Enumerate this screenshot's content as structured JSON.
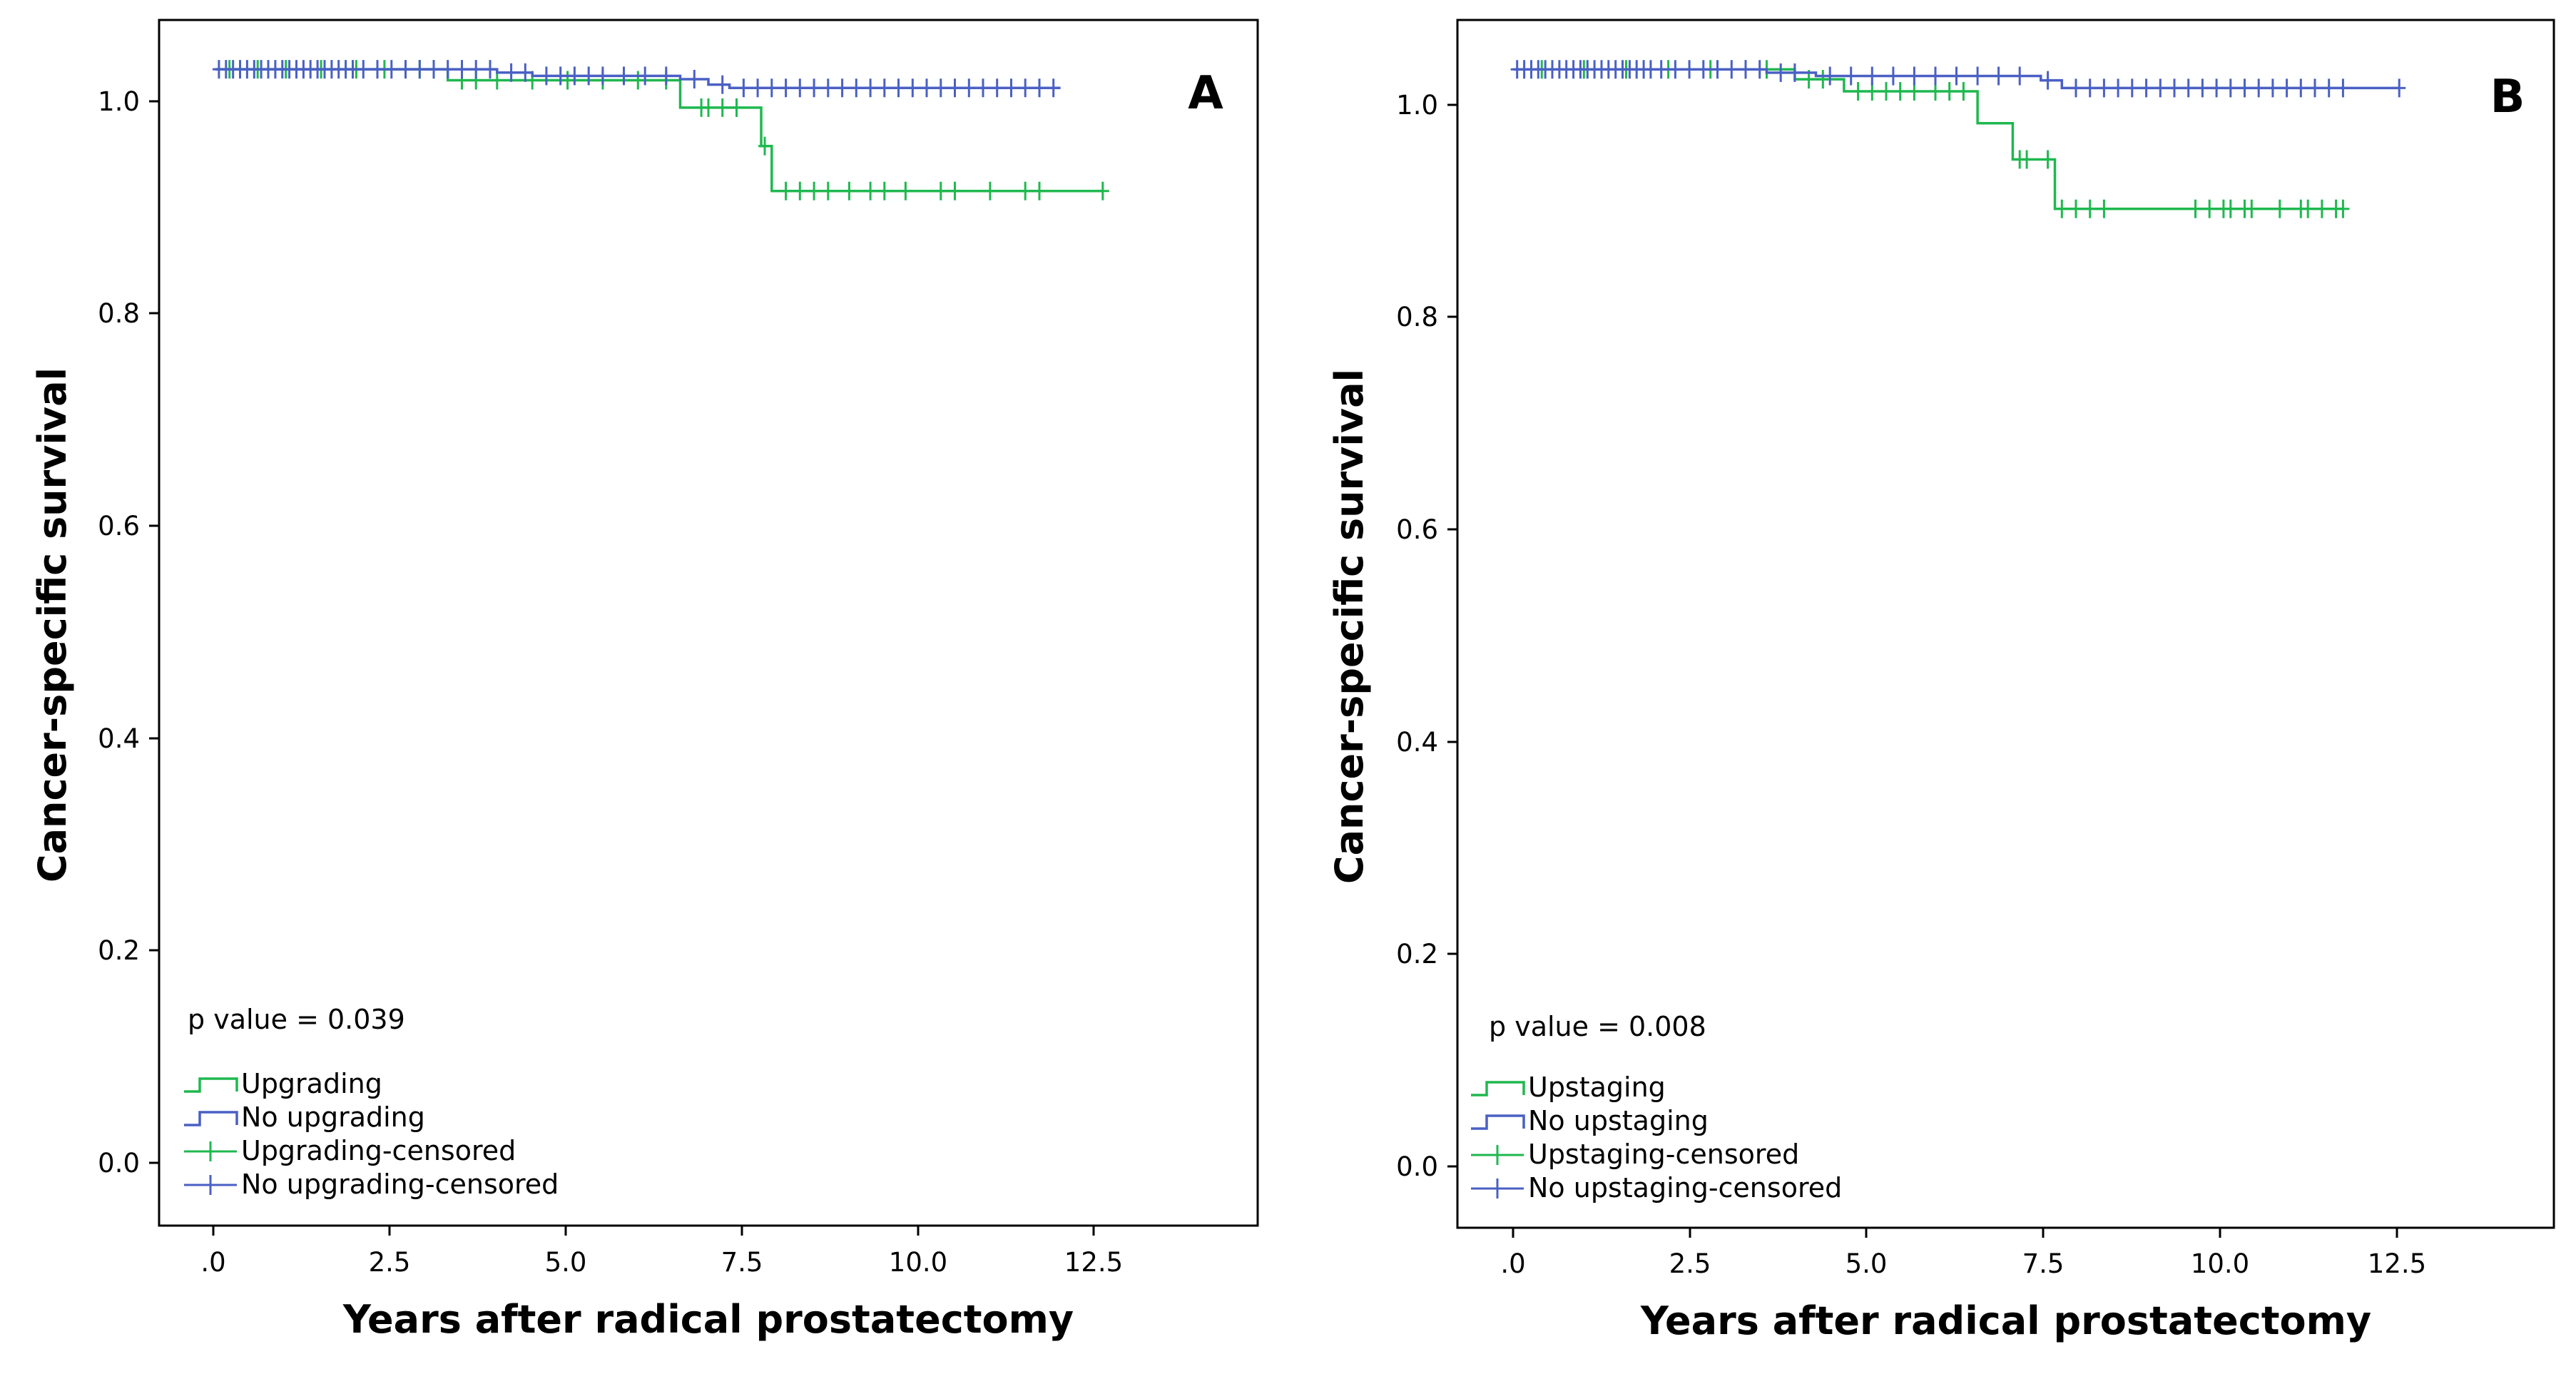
{
  "chart_data": [
    {
      "type": "line",
      "subtype": "kaplan-meier",
      "panel_label": "A",
      "xlabel": "Years after radical prostatectomy",
      "ylabel": "Cancer-specific survival",
      "xlim": [
        -0.8,
        14.8
      ],
      "ylim": [
        -0.055,
        1.045
      ],
      "xticks": [
        0,
        2.5,
        5,
        7.5,
        10,
        12.5
      ],
      "xtick_labels": [
        ".0",
        "2.5",
        "5.0",
        "7.5",
        "10.0",
        "12.5"
      ],
      "yticks": [
        0,
        0.2,
        0.4,
        0.6,
        0.8,
        1.0
      ],
      "ytick_labels": [
        "0.0",
        "0.2",
        "0.4",
        "0.6",
        "0.8",
        "1.0"
      ],
      "annotation": "p value = 0.039",
      "legend": [
        {
          "label": "Upgrading",
          "kind": "line",
          "series": 0
        },
        {
          "label": "No upgrading",
          "kind": "line",
          "series": 1
        },
        {
          "label": "Upgrading-censored",
          "kind": "censor",
          "series": 0
        },
        {
          "label": "No upgrading-censored",
          "kind": "censor",
          "series": 1
        }
      ],
      "series": [
        {
          "name": "Upgrading",
          "color": "#1fb84f",
          "steps": [
            [
              0,
              1.0
            ],
            [
              3.3,
              0.99
            ],
            [
              6.6,
              0.965
            ],
            [
              7.75,
              0.93
            ],
            [
              7.9,
              0.889
            ],
            [
              12.6,
              0.889
            ]
          ],
          "censored": [
            [
              0.2,
              1.0
            ],
            [
              0.6,
              1.0
            ],
            [
              1.0,
              1.0
            ],
            [
              1.5,
              1.0
            ],
            [
              2.0,
              1.0
            ],
            [
              2.4,
              1.0
            ],
            [
              2.9,
              1.0
            ],
            [
              3.1,
              1.0
            ],
            [
              3.5,
              0.99
            ],
            [
              3.7,
              0.99
            ],
            [
              4.0,
              0.99
            ],
            [
              4.5,
              0.99
            ],
            [
              5.0,
              0.99
            ],
            [
              5.5,
              0.99
            ],
            [
              6.0,
              0.99
            ],
            [
              6.4,
              0.99
            ],
            [
              6.9,
              0.965
            ],
            [
              7.0,
              0.965
            ],
            [
              7.2,
              0.965
            ],
            [
              7.4,
              0.965
            ],
            [
              7.8,
              0.93
            ],
            [
              8.1,
              0.889
            ],
            [
              8.3,
              0.889
            ],
            [
              8.5,
              0.889
            ],
            [
              8.7,
              0.889
            ],
            [
              9.0,
              0.889
            ],
            [
              9.3,
              0.889
            ],
            [
              9.5,
              0.889
            ],
            [
              9.8,
              0.889
            ],
            [
              10.3,
              0.889
            ],
            [
              10.5,
              0.889
            ],
            [
              11.0,
              0.889
            ],
            [
              11.5,
              0.889
            ],
            [
              11.7,
              0.889
            ],
            [
              12.6,
              0.889
            ]
          ]
        },
        {
          "name": "No upgrading",
          "color": "#4a60c4",
          "steps": [
            [
              0,
              1.0
            ],
            [
              4.0,
              0.997
            ],
            [
              4.5,
              0.994
            ],
            [
              6.6,
              0.991
            ],
            [
              7.0,
              0.986
            ],
            [
              7.3,
              0.983
            ],
            [
              12.0,
              0.983
            ]
          ],
          "censored": [
            [
              0.05,
              1.0
            ],
            [
              0.15,
              1.0
            ],
            [
              0.25,
              1.0
            ],
            [
              0.35,
              1.0
            ],
            [
              0.45,
              1.0
            ],
            [
              0.55,
              1.0
            ],
            [
              0.65,
              1.0
            ],
            [
              0.75,
              1.0
            ],
            [
              0.85,
              1.0
            ],
            [
              0.95,
              1.0
            ],
            [
              1.05,
              1.0
            ],
            [
              1.15,
              1.0
            ],
            [
              1.25,
              1.0
            ],
            [
              1.35,
              1.0
            ],
            [
              1.45,
              1.0
            ],
            [
              1.55,
              1.0
            ],
            [
              1.65,
              1.0
            ],
            [
              1.75,
              1.0
            ],
            [
              1.85,
              1.0
            ],
            [
              1.95,
              1.0
            ],
            [
              2.1,
              1.0
            ],
            [
              2.3,
              1.0
            ],
            [
              2.5,
              1.0
            ],
            [
              2.7,
              1.0
            ],
            [
              2.9,
              1.0
            ],
            [
              3.1,
              1.0
            ],
            [
              3.3,
              1.0
            ],
            [
              3.5,
              1.0
            ],
            [
              3.7,
              1.0
            ],
            [
              3.9,
              1.0
            ],
            [
              4.2,
              0.997
            ],
            [
              4.4,
              0.997
            ],
            [
              4.7,
              0.994
            ],
            [
              4.9,
              0.994
            ],
            [
              5.1,
              0.994
            ],
            [
              5.3,
              0.994
            ],
            [
              5.5,
              0.994
            ],
            [
              5.8,
              0.994
            ],
            [
              6.1,
              0.994
            ],
            [
              6.4,
              0.994
            ],
            [
              6.8,
              0.991
            ],
            [
              7.2,
              0.986
            ],
            [
              7.5,
              0.983
            ],
            [
              7.7,
              0.983
            ],
            [
              7.9,
              0.983
            ],
            [
              8.1,
              0.983
            ],
            [
              8.3,
              0.983
            ],
            [
              8.5,
              0.983
            ],
            [
              8.7,
              0.983
            ],
            [
              8.9,
              0.983
            ],
            [
              9.1,
              0.983
            ],
            [
              9.3,
              0.983
            ],
            [
              9.5,
              0.983
            ],
            [
              9.7,
              0.983
            ],
            [
              9.9,
              0.983
            ],
            [
              10.1,
              0.983
            ],
            [
              10.3,
              0.983
            ],
            [
              10.5,
              0.983
            ],
            [
              10.7,
              0.983
            ],
            [
              10.9,
              0.983
            ],
            [
              11.1,
              0.983
            ],
            [
              11.3,
              0.983
            ],
            [
              11.5,
              0.983
            ],
            [
              11.7,
              0.983
            ],
            [
              11.9,
              0.983
            ]
          ]
        }
      ]
    },
    {
      "type": "line",
      "subtype": "kaplan-meier",
      "panel_label": "B",
      "xlabel": "Years after radical prostatectomy",
      "ylabel": "Cancer-specific survival",
      "xlim": [
        -0.8,
        14.8
      ],
      "ylim": [
        -0.055,
        1.045
      ],
      "xticks": [
        0,
        2.5,
        5,
        7.5,
        10,
        12.5
      ],
      "xtick_labels": [
        ".0",
        "2.5",
        "5.0",
        "7.5",
        "10.0",
        "12.5"
      ],
      "yticks": [
        0,
        0.2,
        0.4,
        0.6,
        0.8,
        1.0
      ],
      "ytick_labels": [
        "0.0",
        "0.2",
        "0.4",
        "0.6",
        "0.8",
        "1.0"
      ],
      "annotation": "p value = 0.008",
      "legend": [
        {
          "label": "Upstaging",
          "kind": "line",
          "series": 0
        },
        {
          "label": "No upstaging",
          "kind": "line",
          "series": 1
        },
        {
          "label": "Upstaging-censored",
          "kind": "censor",
          "series": 0
        },
        {
          "label": "No upstaging-censored",
          "kind": "censor",
          "series": 1
        }
      ],
      "series": [
        {
          "name": "Upstaging",
          "color": "#1fb84f",
          "steps": [
            [
              0,
              1.0
            ],
            [
              4.0,
              0.991
            ],
            [
              4.7,
              0.98
            ],
            [
              6.6,
              0.951
            ],
            [
              7.1,
              0.918
            ],
            [
              7.7,
              0.873
            ],
            [
              11.8,
              0.873
            ]
          ],
          "censored": [
            [
              0.4,
              1.0
            ],
            [
              1.0,
              1.0
            ],
            [
              1.6,
              1.0
            ],
            [
              2.2,
              1.0
            ],
            [
              2.8,
              1.0
            ],
            [
              3.3,
              1.0
            ],
            [
              3.6,
              1.0
            ],
            [
              4.2,
              0.991
            ],
            [
              4.4,
              0.991
            ],
            [
              4.9,
              0.98
            ],
            [
              5.1,
              0.98
            ],
            [
              5.3,
              0.98
            ],
            [
              5.5,
              0.98
            ],
            [
              5.7,
              0.98
            ],
            [
              6.0,
              0.98
            ],
            [
              6.2,
              0.98
            ],
            [
              6.4,
              0.98
            ],
            [
              7.2,
              0.918
            ],
            [
              7.3,
              0.918
            ],
            [
              7.6,
              0.918
            ],
            [
              7.8,
              0.873
            ],
            [
              8.0,
              0.873
            ],
            [
              8.2,
              0.873
            ],
            [
              8.4,
              0.873
            ],
            [
              9.7,
              0.873
            ],
            [
              9.9,
              0.873
            ],
            [
              10.1,
              0.873
            ],
            [
              10.2,
              0.873
            ],
            [
              10.4,
              0.873
            ],
            [
              10.5,
              0.873
            ],
            [
              10.9,
              0.873
            ],
            [
              11.2,
              0.873
            ],
            [
              11.3,
              0.873
            ],
            [
              11.5,
              0.873
            ],
            [
              11.7,
              0.873
            ],
            [
              11.8,
              0.873
            ]
          ]
        },
        {
          "name": "No upstaging",
          "color": "#4a60c4",
          "steps": [
            [
              0,
              1.0
            ],
            [
              3.6,
              0.997
            ],
            [
              4.3,
              0.994
            ],
            [
              7.5,
              0.99
            ],
            [
              7.8,
              0.983
            ],
            [
              12.6,
              0.983
            ]
          ],
          "censored": [
            [
              0.05,
              1.0
            ],
            [
              0.15,
              1.0
            ],
            [
              0.25,
              1.0
            ],
            [
              0.35,
              1.0
            ],
            [
              0.45,
              1.0
            ],
            [
              0.55,
              1.0
            ],
            [
              0.65,
              1.0
            ],
            [
              0.75,
              1.0
            ],
            [
              0.85,
              1.0
            ],
            [
              0.95,
              1.0
            ],
            [
              1.05,
              1.0
            ],
            [
              1.15,
              1.0
            ],
            [
              1.25,
              1.0
            ],
            [
              1.35,
              1.0
            ],
            [
              1.45,
              1.0
            ],
            [
              1.55,
              1.0
            ],
            [
              1.65,
              1.0
            ],
            [
              1.75,
              1.0
            ],
            [
              1.85,
              1.0
            ],
            [
              1.95,
              1.0
            ],
            [
              2.1,
              1.0
            ],
            [
              2.3,
              1.0
            ],
            [
              2.5,
              1.0
            ],
            [
              2.7,
              1.0
            ],
            [
              2.9,
              1.0
            ],
            [
              3.1,
              1.0
            ],
            [
              3.3,
              1.0
            ],
            [
              3.5,
              1.0
            ],
            [
              3.8,
              0.997
            ],
            [
              4.0,
              0.997
            ],
            [
              4.5,
              0.994
            ],
            [
              4.8,
              0.994
            ],
            [
              5.1,
              0.994
            ],
            [
              5.4,
              0.994
            ],
            [
              5.7,
              0.994
            ],
            [
              6.0,
              0.994
            ],
            [
              6.3,
              0.994
            ],
            [
              6.6,
              0.994
            ],
            [
              6.9,
              0.994
            ],
            [
              7.2,
              0.994
            ],
            [
              7.6,
              0.99
            ],
            [
              8.0,
              0.983
            ],
            [
              8.2,
              0.983
            ],
            [
              8.4,
              0.983
            ],
            [
              8.6,
              0.983
            ],
            [
              8.8,
              0.983
            ],
            [
              9.0,
              0.983
            ],
            [
              9.2,
              0.983
            ],
            [
              9.4,
              0.983
            ],
            [
              9.6,
              0.983
            ],
            [
              9.8,
              0.983
            ],
            [
              10.0,
              0.983
            ],
            [
              10.2,
              0.983
            ],
            [
              10.4,
              0.983
            ],
            [
              10.6,
              0.983
            ],
            [
              10.8,
              0.983
            ],
            [
              11.0,
              0.983
            ],
            [
              11.2,
              0.983
            ],
            [
              11.4,
              0.983
            ],
            [
              11.6,
              0.983
            ],
            [
              11.8,
              0.983
            ],
            [
              12.6,
              0.983
            ]
          ]
        }
      ]
    }
  ]
}
